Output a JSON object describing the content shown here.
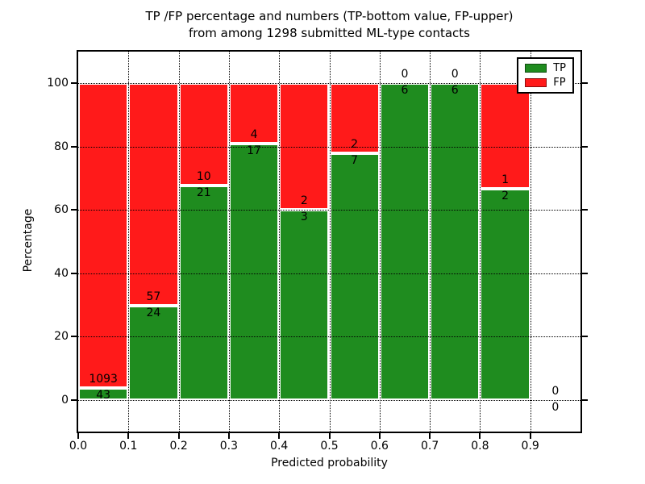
{
  "figure": {
    "title_line1": "TP /FP percentage and numbers (TP-bottom value, FP-upper)",
    "title_line2": "from among 1298 submitted ML-type contacts",
    "xlabel": "Predicted probability",
    "ylabel": "Percentage"
  },
  "chart_data": {
    "type": "bar",
    "stacked": true,
    "title": "TP /FP percentage and numbers (TP-bottom value, FP-upper) from among 1298 submitted ML-type contacts",
    "xlabel": "Predicted probability",
    "ylabel": "Percentage",
    "total_contacts": 1298,
    "xlim": [
      0.0,
      1.0
    ],
    "ylim": [
      -10,
      110
    ],
    "xticks": [
      0.0,
      0.1,
      0.2,
      0.3,
      0.4,
      0.5,
      0.6,
      0.7,
      0.8,
      0.9
    ],
    "xtick_labels": [
      "0.0",
      "0.1",
      "0.2",
      "0.3",
      "0.4",
      "0.5",
      "0.6",
      "0.7",
      "0.8",
      "0.9"
    ],
    "yticks": [
      0,
      20,
      40,
      60,
      80,
      100
    ],
    "ytick_labels": [
      "0",
      "20",
      "40",
      "60",
      "80",
      "100"
    ],
    "grid": true,
    "legend": {
      "position": "upper right",
      "entries": [
        {
          "label": "TP",
          "color": "#1f8c1f"
        },
        {
          "label": "FP",
          "color": "#ff1a1a"
        }
      ]
    },
    "colors": {
      "tp": "#1f8c1f",
      "fp": "#ff1a1a",
      "bar_edge": "#ffffff",
      "grid": "#000000"
    },
    "bins": [
      {
        "range": [
          0.0,
          0.1
        ],
        "tp": 43,
        "fp": 1093,
        "tp_pct": 3.8
      },
      {
        "range": [
          0.1,
          0.2
        ],
        "tp": 24,
        "fp": 57,
        "tp_pct": 29.6
      },
      {
        "range": [
          0.2,
          0.3
        ],
        "tp": 21,
        "fp": 10,
        "tp_pct": 67.7
      },
      {
        "range": [
          0.3,
          0.4
        ],
        "tp": 17,
        "fp": 4,
        "tp_pct": 81.0
      },
      {
        "range": [
          0.4,
          0.5
        ],
        "tp": 3,
        "fp": 2,
        "tp_pct": 60.0
      },
      {
        "range": [
          0.5,
          0.6
        ],
        "tp": 7,
        "fp": 2,
        "tp_pct": 77.8
      },
      {
        "range": [
          0.6,
          0.7
        ],
        "tp": 6,
        "fp": 0,
        "tp_pct": 100.0
      },
      {
        "range": [
          0.7,
          0.8
        ],
        "tp": 6,
        "fp": 0,
        "tp_pct": 100.0
      },
      {
        "range": [
          0.8,
          0.9
        ],
        "tp": 2,
        "fp": 1,
        "tp_pct": 66.7
      },
      {
        "range": [
          0.9,
          1.0
        ],
        "tp": 0,
        "fp": 0,
        "tp_pct": null
      }
    ]
  }
}
